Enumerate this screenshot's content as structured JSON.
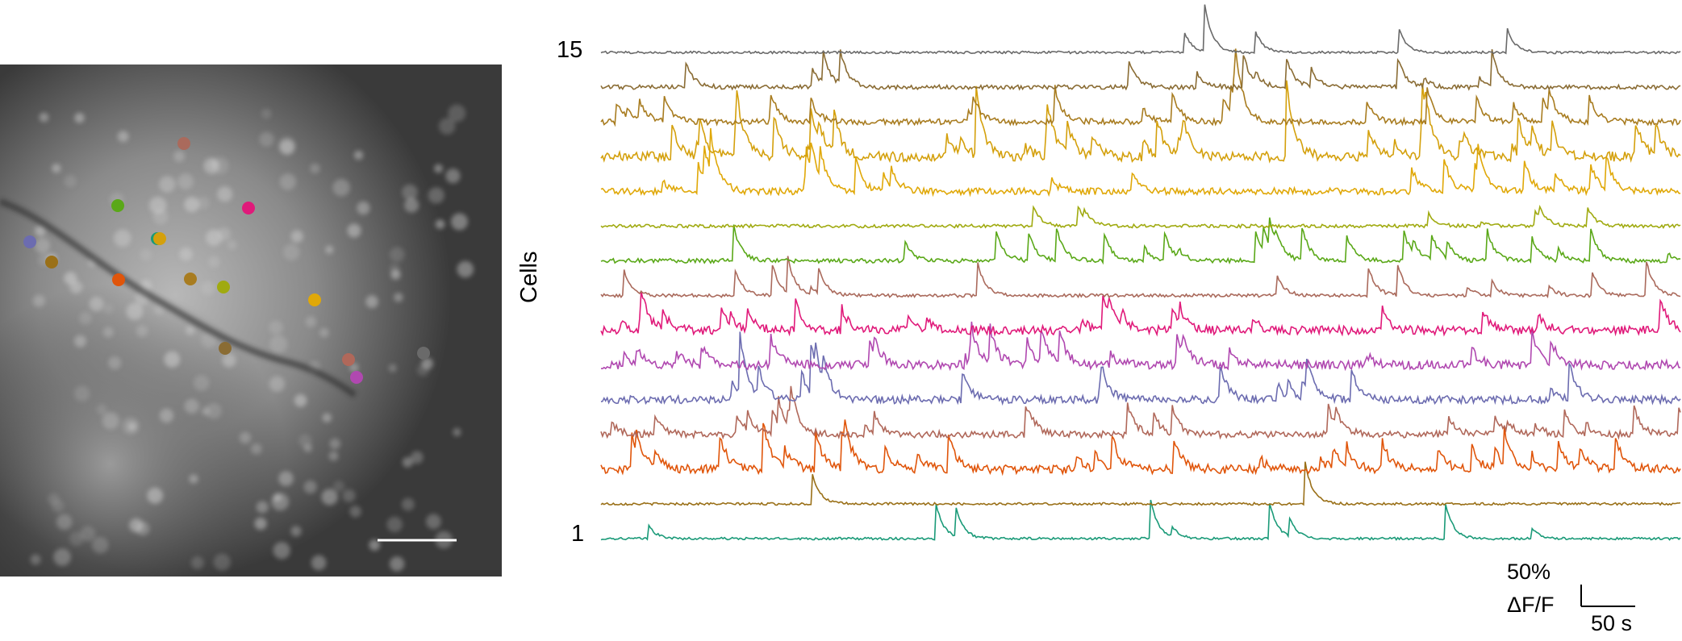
{
  "scale_bar": {
    "amplitude_label": "50%",
    "amplitude_unit": "ΔF/F",
    "time_label": "50 s"
  },
  "axis": {
    "label": "Cells",
    "top_index": "15",
    "bottom_index": "1"
  },
  "colors": {
    "microscope_bg": "#3a3a3a",
    "tissue": "#8c8c8c",
    "scale_bar_line": "#ffffff"
  },
  "cells": [
    {
      "id": 1,
      "color": "#1a9a78",
      "baseline": 0.01,
      "noise": 0.25,
      "spikes": 9,
      "amp": 1.0
    },
    {
      "id": 2,
      "color": "#9a7018",
      "baseline": 0.01,
      "noise": 0.25,
      "spikes": 2,
      "amp": 1.4
    },
    {
      "id": 3,
      "color": "#e0550a",
      "baseline": 0.02,
      "noise": 0.9,
      "spikes": 30,
      "amp": 1.0
    },
    {
      "id": 4,
      "color": "#b0685a",
      "baseline": 0.02,
      "noise": 0.7,
      "spikes": 25,
      "amp": 0.8
    },
    {
      "id": 5,
      "color": "#6c6cb0",
      "baseline": 0.02,
      "noise": 0.8,
      "spikes": 20,
      "amp": 1.0
    },
    {
      "id": 6,
      "color": "#b048b0",
      "baseline": 0.02,
      "noise": 0.9,
      "spikes": 22,
      "amp": 0.9
    },
    {
      "id": 7,
      "color": "#e01a7a",
      "baseline": 0.02,
      "noise": 0.9,
      "spikes": 22,
      "amp": 0.9
    },
    {
      "id": 8,
      "color": "#aa6a5c",
      "baseline": 0.01,
      "noise": 0.35,
      "spikes": 16,
      "amp": 0.9
    },
    {
      "id": 9,
      "color": "#5aa818",
      "baseline": 0.01,
      "noise": 0.45,
      "spikes": 24,
      "amp": 0.9
    },
    {
      "id": 10,
      "color": "#a0aa10",
      "baseline": 0.01,
      "noise": 0.35,
      "spikes": 8,
      "amp": 0.5
    },
    {
      "id": 11,
      "color": "#e0a808",
      "baseline": 0.02,
      "noise": 0.7,
      "spikes": 22,
      "amp": 0.9
    },
    {
      "id": 12,
      "color": "#d4a00c",
      "baseline": 0.03,
      "noise": 1.0,
      "spikes": 40,
      "amp": 1.2
    },
    {
      "id": 13,
      "color": "#a87c20",
      "baseline": 0.02,
      "noise": 0.6,
      "spikes": 22,
      "amp": 0.9
    },
    {
      "id": 14,
      "color": "#8a6c34",
      "baseline": 0.01,
      "noise": 0.45,
      "spikes": 14,
      "amp": 0.9
    },
    {
      "id": 15,
      "color": "#6a6a6a",
      "baseline": 0.01,
      "noise": 0.25,
      "spikes": 5,
      "amp": 1.3
    }
  ]
}
